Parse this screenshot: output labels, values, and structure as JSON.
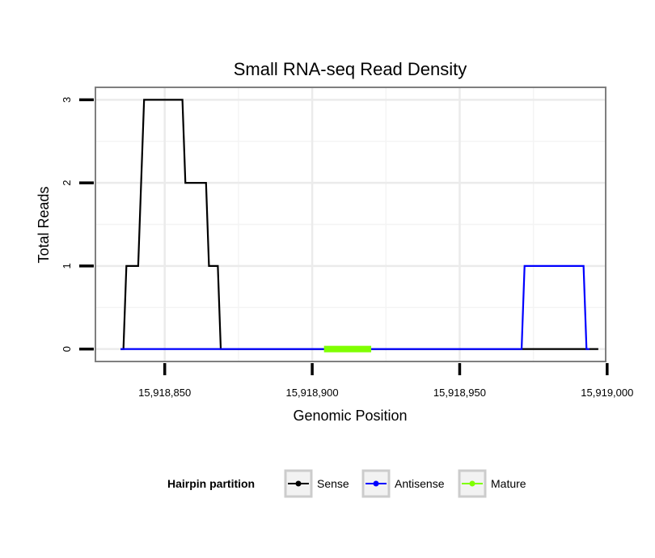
{
  "chart_data": {
    "type": "line",
    "title": "Small RNA-seq Read Density",
    "xlabel": "Genomic Position",
    "ylabel": "Total Reads",
    "xlim": [
      15918826.5,
      15918999.5
    ],
    "ylim": [
      -0.15,
      3.15
    ],
    "x_ticks": [
      15918850,
      15918900,
      15918950,
      15919000
    ],
    "x_tick_labels": [
      "15,918,850",
      "15,918,900",
      "15,918,950",
      "15,919,000"
    ],
    "y_ticks": [
      0,
      1,
      2,
      3
    ],
    "y_tick_labels": [
      "0",
      "1",
      "2",
      "3"
    ],
    "grid": true,
    "legend": {
      "title": "Hairpin partition",
      "position": "bottom",
      "entries": [
        {
          "name": "Sense",
          "color": "#000000"
        },
        {
          "name": "Antisense",
          "color": "#0000ff"
        },
        {
          "name": "Mature",
          "color": "#7fff00"
        }
      ]
    },
    "series": [
      {
        "name": "Sense",
        "color": "#000000",
        "x": [
          15918835,
          15918836,
          15918837,
          15918838,
          15918839,
          15918840,
          15918841,
          15918842,
          15918843,
          15918844,
          15918845,
          15918846,
          15918847,
          15918848,
          15918849,
          15918850,
          15918851,
          15918852,
          15918853,
          15918854,
          15918855,
          15918856,
          15918857,
          15918858,
          15918859,
          15918860,
          15918861,
          15918862,
          15918863,
          15918864,
          15918865,
          15918866,
          15918867,
          15918868,
          15918869,
          15918870,
          15918997
        ],
        "y": [
          0,
          0,
          1,
          1,
          1,
          1,
          1,
          2,
          3,
          3,
          3,
          3,
          3,
          3,
          3,
          3,
          3,
          3,
          3,
          3,
          3,
          3,
          2,
          2,
          2,
          2,
          2,
          2,
          2,
          2,
          1,
          1,
          1,
          1,
          0,
          0,
          0
        ]
      },
      {
        "name": "Antisense",
        "color": "#0000ff",
        "x": [
          15918835,
          15918869,
          15918971,
          15918972,
          15918992,
          15918993,
          15918994
        ],
        "y": [
          0,
          0,
          0,
          1,
          1,
          0,
          0
        ]
      },
      {
        "name": "Mature",
        "color": "#7fff00",
        "x": [
          15918904,
          15918920
        ],
        "y": [
          0,
          0
        ]
      }
    ]
  }
}
